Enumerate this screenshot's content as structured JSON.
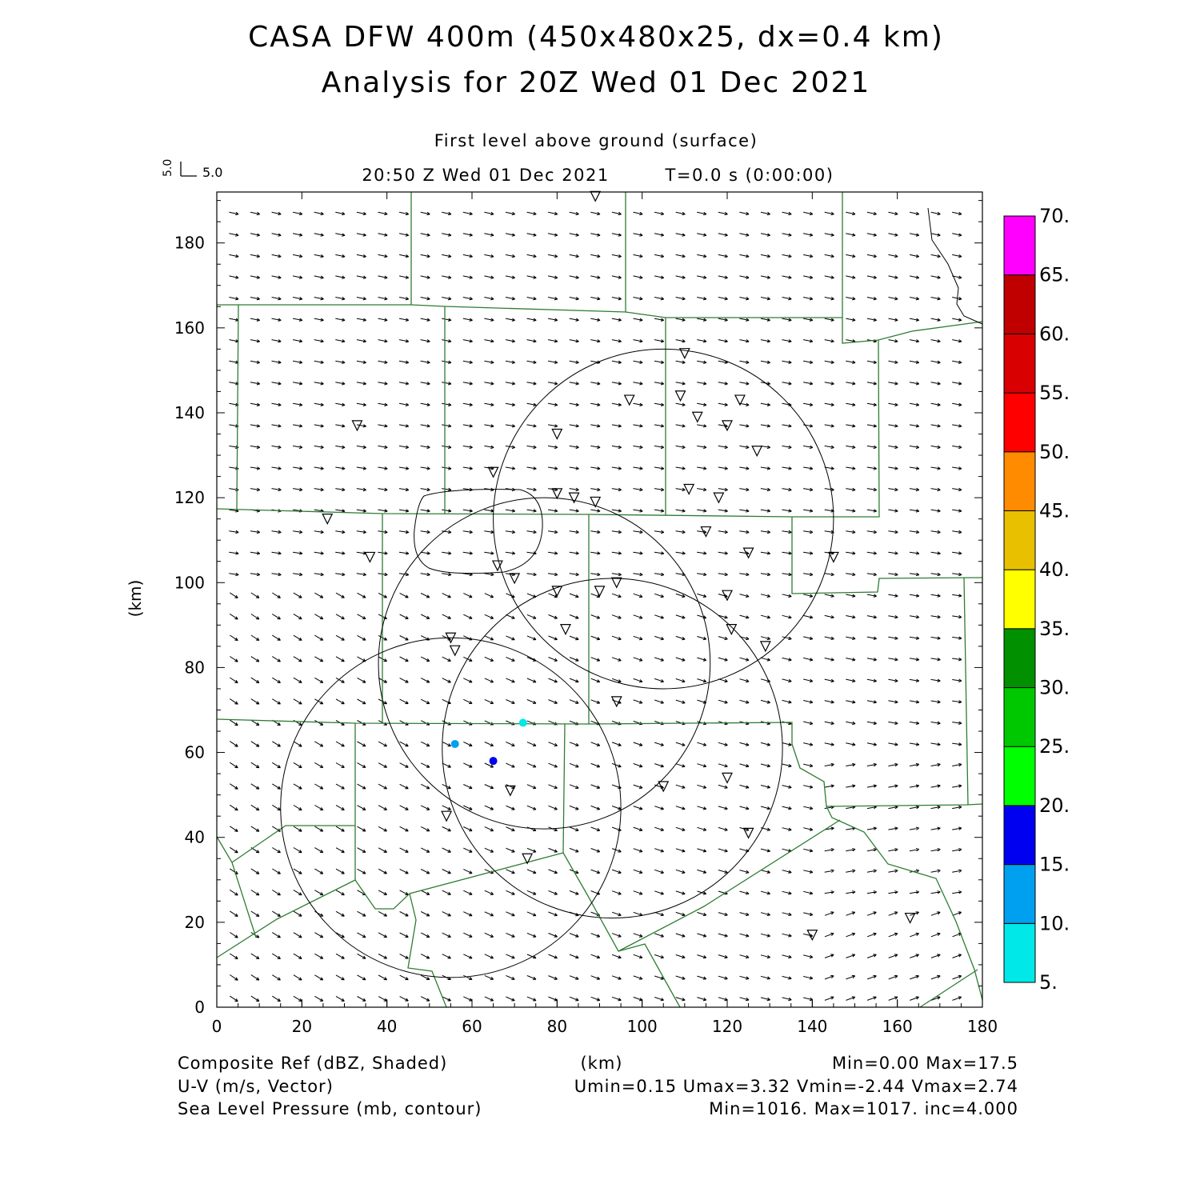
{
  "header": {
    "title_line1": "CASA DFW 400m (450x480x25, dx=0.4 km)",
    "title_line2": "Analysis for 20Z Wed 01 Dec 2021",
    "level": "First level above ground (surface)",
    "valid_time": "20:50 Z Wed 01 Dec 2021",
    "elapsed": "T=0.0 s (0:00:00)",
    "vector_key_x": "5.0",
    "vector_key_y": "5.0"
  },
  "axes": {
    "y_label": "(km)",
    "x_label": "(km)",
    "x_ticks": [
      "0",
      "20",
      "40",
      "60",
      "80",
      "100",
      "120",
      "140",
      "160",
      "180"
    ],
    "y_ticks": [
      "0",
      "20",
      "40",
      "60",
      "80",
      "100",
      "120",
      "140",
      "160",
      "180"
    ]
  },
  "colorbar": {
    "labels": [
      "5.",
      "10.",
      "15.",
      "20.",
      "25.",
      "30.",
      "35.",
      "40.",
      "45.",
      "50.",
      "55.",
      "60.",
      "65.",
      "70."
    ],
    "colors": [
      "#00e8e8",
      "#00a0f0",
      "#0000f0",
      "#00ff00",
      "#00c800",
      "#009000",
      "#ffff00",
      "#e8c000",
      "#ff8c00",
      "#ff0000",
      "#d80000",
      "#c00000",
      "#ff00ff"
    ]
  },
  "footer": {
    "left": [
      "Composite Ref (dBZ, Shaded)",
      "U-V (m/s, Vector)",
      "Sea Level Pressure (mb, contour)"
    ],
    "center": "(km)",
    "right": [
      "Min=0.00 Max=17.5",
      "Umin=0.15 Umax=3.32 Vmin=-2.44 Vmax=2.74",
      "Min=1016. Max=1017. inc=4.000"
    ]
  },
  "map": {
    "county_color": "#2e7d32",
    "stations_km": [
      [
        89,
        191
      ],
      [
        110,
        154
      ],
      [
        97,
        143
      ],
      [
        109,
        144
      ],
      [
        123,
        143
      ],
      [
        80,
        135
      ],
      [
        113,
        139
      ],
      [
        120,
        137
      ],
      [
        127,
        131
      ],
      [
        33,
        137
      ],
      [
        65,
        126
      ],
      [
        80,
        121
      ],
      [
        84,
        120
      ],
      [
        89,
        119
      ],
      [
        111,
        122
      ],
      [
        118,
        120
      ],
      [
        26,
        115
      ],
      [
        36,
        106
      ],
      [
        66,
        104
      ],
      [
        70,
        101
      ],
      [
        115,
        112
      ],
      [
        125,
        107
      ],
      [
        145,
        106
      ],
      [
        80,
        98
      ],
      [
        90,
        98
      ],
      [
        94,
        100
      ],
      [
        120,
        97
      ],
      [
        82,
        89
      ],
      [
        121,
        89
      ],
      [
        129,
        85
      ],
      [
        55,
        87
      ],
      [
        56,
        84
      ],
      [
        94,
        72
      ],
      [
        69,
        51
      ],
      [
        105,
        52
      ],
      [
        120,
        54
      ],
      [
        54,
        45
      ],
      [
        125,
        41
      ],
      [
        73,
        35
      ],
      [
        163,
        21
      ],
      [
        140,
        17
      ]
    ],
    "reflectivity_blobs_km": [
      [
        56,
        62,
        "#00a0f0"
      ],
      [
        65,
        58,
        "#0000f0"
      ],
      [
        72,
        67,
        "#00e8e8"
      ]
    ],
    "radar_rings_km": [
      [
        55,
        47,
        40
      ],
      [
        77,
        81,
        39
      ],
      [
        93,
        61,
        40
      ],
      [
        105,
        115,
        40
      ]
    ]
  }
}
